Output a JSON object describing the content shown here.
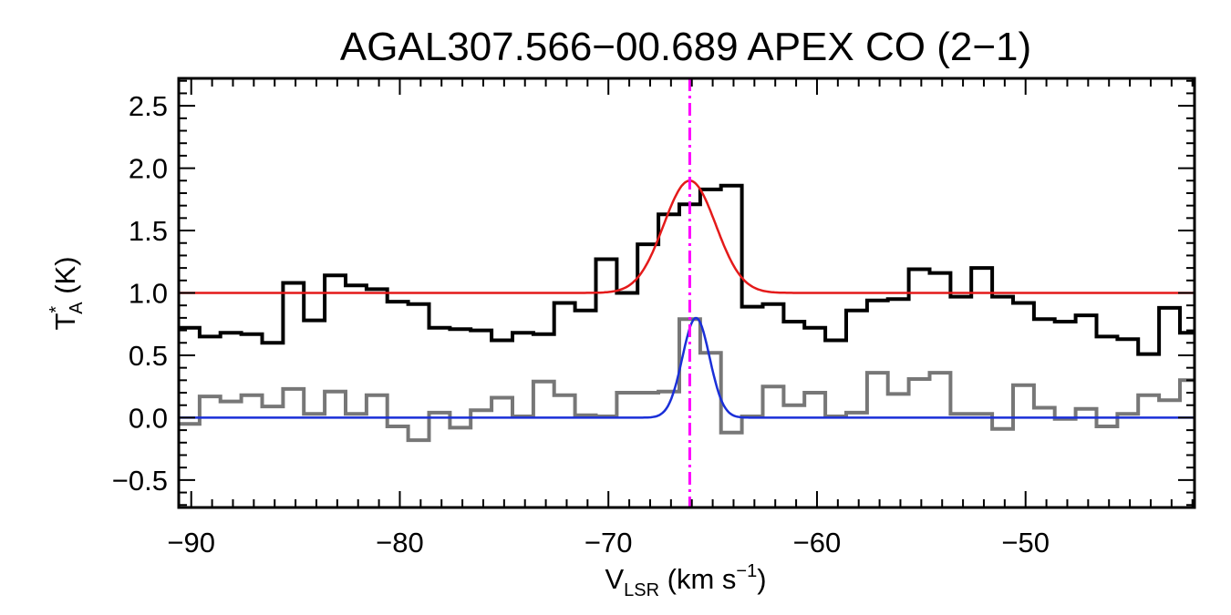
{
  "chart_data": {
    "type": "line",
    "title": "AGAL307.566−00.689  APEX CO (2−1)",
    "xlabel": {
      "main": "V",
      "sub": "LSR",
      "rest": " (km s",
      "sup": "−1",
      "close": ")"
    },
    "ylabel": {
      "main": "T",
      "sup": "*",
      "sub": "A",
      "rest": " (K)"
    },
    "xlim": [
      -90.6,
      -41.9
    ],
    "ylim": [
      -0.72,
      2.72
    ],
    "xticks": [
      -90,
      -80,
      -70,
      -60,
      -50
    ],
    "xtick_labels": [
      "−90",
      "−80",
      "−70",
      "−60",
      "−50"
    ],
    "yticks": [
      -0.5,
      0.0,
      0.5,
      1.0,
      1.5,
      2.0,
      2.5
    ],
    "ytick_labels": [
      "−0.5",
      "0.0",
      "0.5",
      "1.0",
      "1.5",
      "2.0",
      "2.5"
    ],
    "x_minor_step": 1,
    "y_minor_step": 0.1,
    "grid": false,
    "legend": "none",
    "series": [
      {
        "kind": "step",
        "color": "#000000",
        "x": [
          -90.6,
          -89.6,
          -88.6,
          -87.6,
          -86.6,
          -85.6,
          -84.6,
          -83.6,
          -82.6,
          -81.6,
          -80.6,
          -79.6,
          -78.6,
          -77.6,
          -76.6,
          -75.6,
          -74.6,
          -73.6,
          -72.6,
          -71.6,
          -70.6,
          -69.6,
          -68.6,
          -67.6,
          -66.6,
          -65.6,
          -64.6,
          -63.6,
          -62.6,
          -61.6,
          -60.6,
          -59.6,
          -58.6,
          -57.6,
          -56.6,
          -55.6,
          -54.6,
          -53.6,
          -52.6,
          -51.6,
          -50.6,
          -49.6,
          -48.6,
          -47.6,
          -46.6,
          -45.6,
          -44.6,
          -43.6,
          -42.6,
          -41.6
        ],
        "y": [
          0.72,
          0.65,
          0.68,
          0.67,
          0.6,
          1.08,
          0.78,
          1.14,
          1.06,
          1.03,
          0.93,
          0.91,
          0.72,
          0.71,
          0.7,
          0.62,
          0.68,
          0.67,
          0.92,
          0.86,
          1.27,
          1.0,
          1.39,
          1.63,
          1.71,
          1.83,
          1.86,
          0.89,
          0.91,
          0.77,
          0.72,
          0.62,
          0.86,
          0.94,
          0.95,
          1.19,
          1.16,
          0.97,
          1.2,
          0.97,
          0.92,
          0.79,
          0.77,
          0.82,
          0.65,
          0.63,
          0.51,
          0.88,
          0.68,
          0.93
        ]
      },
      {
        "kind": "step",
        "color": "#777777",
        "x": [
          -90.6,
          -89.6,
          -88.6,
          -87.6,
          -86.6,
          -85.6,
          -84.6,
          -83.6,
          -82.6,
          -81.6,
          -80.6,
          -79.6,
          -78.6,
          -77.6,
          -76.6,
          -75.6,
          -74.6,
          -73.6,
          -72.6,
          -71.6,
          -70.6,
          -69.6,
          -68.6,
          -67.6,
          -66.6,
          -65.6,
          -64.6,
          -63.6,
          -62.6,
          -61.6,
          -60.6,
          -59.6,
          -58.6,
          -57.6,
          -56.6,
          -55.6,
          -54.6,
          -53.6,
          -52.6,
          -51.6,
          -50.6,
          -49.6,
          -48.6,
          -47.6,
          -46.6,
          -45.6,
          -44.6,
          -43.6,
          -42.6,
          -41.6
        ],
        "y": [
          -0.05,
          0.17,
          0.13,
          0.18,
          0.09,
          0.23,
          0.03,
          0.21,
          0.03,
          0.18,
          -0.07,
          -0.18,
          0.04,
          -0.08,
          0.06,
          0.16,
          0.01,
          0.29,
          0.18,
          0.02,
          0.01,
          0.2,
          0.2,
          0.21,
          0.79,
          0.52,
          -0.12,
          0.01,
          0.25,
          0.1,
          0.2,
          0.01,
          0.04,
          0.36,
          0.19,
          0.31,
          0.36,
          0.03,
          0.03,
          -0.09,
          0.26,
          0.08,
          -0.01,
          0.07,
          -0.07,
          0.03,
          0.18,
          0.14,
          0.3,
          0.28
        ]
      },
      {
        "kind": "gaussian",
        "color": "#e41a1a",
        "baseline": 1.0,
        "amplitude": 0.9,
        "center": -66.1,
        "sigma": 1.25
      },
      {
        "kind": "gaussian",
        "color": "#1a2fd8",
        "baseline": 0.0,
        "amplitude": 0.8,
        "center": -65.8,
        "sigma": 0.65
      }
    ],
    "annotations": [
      {
        "kind": "vline",
        "x": -66.1,
        "color": "#ff00ff",
        "style": "dash-dot"
      }
    ]
  }
}
